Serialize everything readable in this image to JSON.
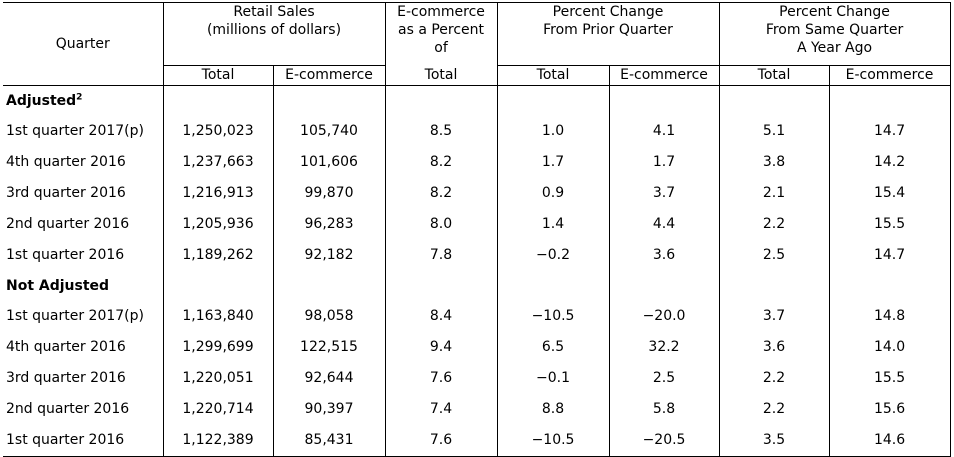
{
  "headers": {
    "quarter": "Quarter",
    "retail_sales": [
      "Retail Sales",
      "(millions of dollars)"
    ],
    "ecom_pct": [
      "E-commerce",
      "as a Percent",
      "of"
    ],
    "ecom_pct_sub": "Total",
    "pct_prior": [
      "Percent Change",
      "From Prior Quarter"
    ],
    "pct_year": [
      "Percent Change",
      "From Same Quarter",
      "A Year Ago"
    ],
    "sub_total": "Total",
    "sub_ecom": "E-commerce"
  },
  "sections": [
    {
      "title": "Adjusted",
      "footnote": "2",
      "rows": [
        {
          "quarter": "1st quarter 2017(p)",
          "total": "1,250,023",
          "ecom": "105,740",
          "pct_of_total": "8.5",
          "prior_total": "1.0",
          "prior_ecom": "4.1",
          "year_total": "5.1",
          "year_ecom": "14.7"
        },
        {
          "quarter": "4th quarter 2016",
          "total": "1,237,663",
          "ecom": "101,606",
          "pct_of_total": "8.2",
          "prior_total": "1.7",
          "prior_ecom": "1.7",
          "year_total": "3.8",
          "year_ecom": "14.2"
        },
        {
          "quarter": "3rd quarter 2016",
          "total": "1,216,913",
          "ecom": "99,870",
          "pct_of_total": "8.2",
          "prior_total": "0.9",
          "prior_ecom": "3.7",
          "year_total": "2.1",
          "year_ecom": "15.4"
        },
        {
          "quarter": "2nd quarter 2016",
          "total": "1,205,936",
          "ecom": "96,283",
          "pct_of_total": "8.0",
          "prior_total": "1.4",
          "prior_ecom": "4.4",
          "year_total": "2.2",
          "year_ecom": "15.5"
        },
        {
          "quarter": "1st quarter 2016",
          "total": "1,189,262",
          "ecom": "92,182",
          "pct_of_total": "7.8",
          "prior_total": "−0.2",
          "prior_ecom": "3.6",
          "year_total": "2.5",
          "year_ecom": "14.7"
        }
      ]
    },
    {
      "title": "Not Adjusted",
      "footnote": "",
      "rows": [
        {
          "quarter": "1st quarter 2017(p)",
          "total": "1,163,840",
          "ecom": "98,058",
          "pct_of_total": "8.4",
          "prior_total": "−10.5",
          "prior_ecom": "−20.0",
          "year_total": "3.7",
          "year_ecom": "14.8"
        },
        {
          "quarter": "4th quarter 2016",
          "total": "1,299,699",
          "ecom": "122,515",
          "pct_of_total": "9.4",
          "prior_total": "6.5",
          "prior_ecom": "32.2",
          "year_total": "3.6",
          "year_ecom": "14.0"
        },
        {
          "quarter": "3rd quarter 2016",
          "total": "1,220,051",
          "ecom": "92,644",
          "pct_of_total": "7.6",
          "prior_total": "−0.1",
          "prior_ecom": "2.5",
          "year_total": "2.2",
          "year_ecom": "15.5"
        },
        {
          "quarter": "2nd quarter 2016",
          "total": "1,220,714",
          "ecom": "90,397",
          "pct_of_total": "7.4",
          "prior_total": "8.8",
          "prior_ecom": "5.8",
          "year_total": "2.2",
          "year_ecom": "15.6"
        },
        {
          "quarter": "1st quarter 2016",
          "total": "1,122,389",
          "ecom": "85,431",
          "pct_of_total": "7.6",
          "prior_total": "−10.5",
          "prior_ecom": "−20.5",
          "year_total": "3.5",
          "year_ecom": "14.6"
        }
      ]
    }
  ]
}
